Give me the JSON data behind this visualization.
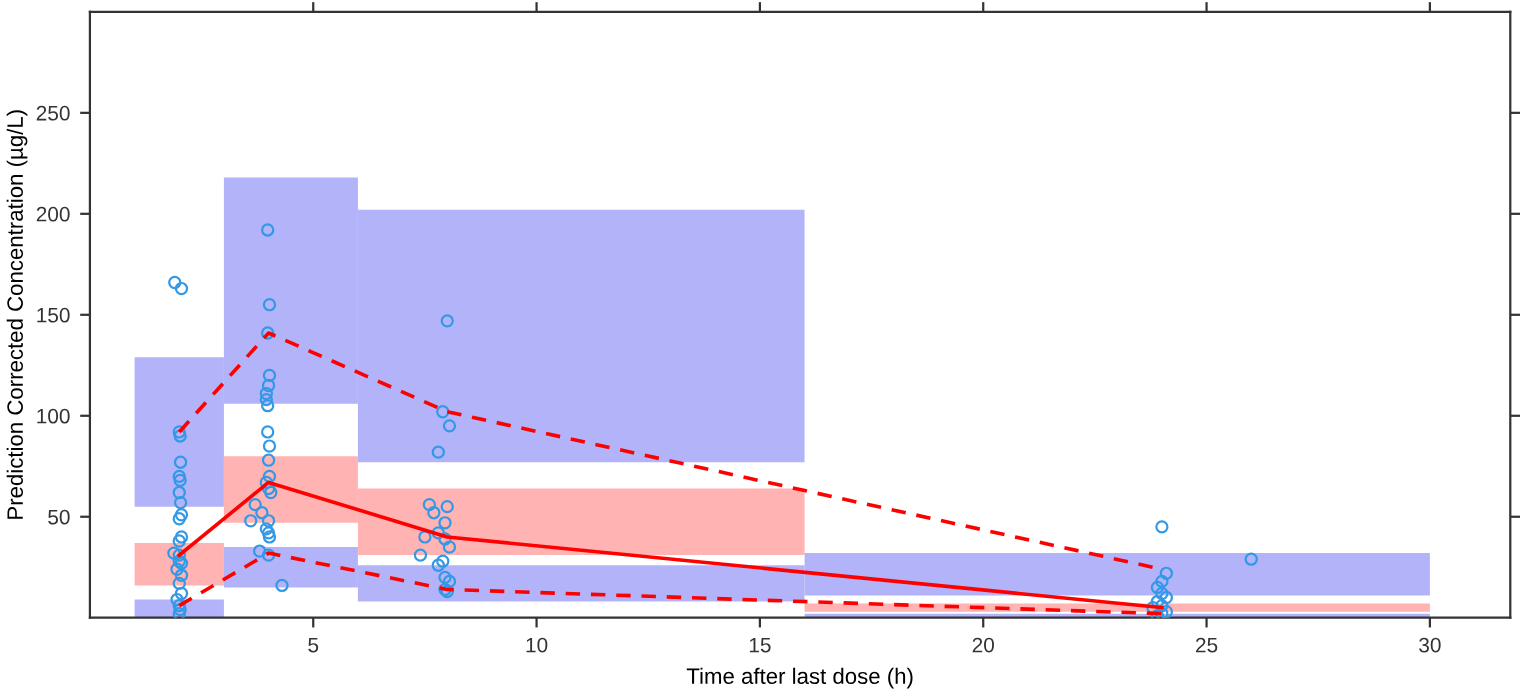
{
  "chart_data": {
    "type": "line",
    "xlabel": "Time after last dose (h)",
    "ylabel": "Prediction Corrected Concentration (µg/L)",
    "xlim": [
      0,
      31.8
    ],
    "ylim": [
      0,
      300
    ],
    "xticks": [
      5,
      10,
      15,
      20,
      25,
      30
    ],
    "yticks": [
      50,
      100,
      150,
      200,
      250
    ],
    "grid": false,
    "series": [
      {
        "type": "histogram",
        "color": "#b3b3fa",
        "bins": [
          1,
          3,
          6,
          16,
          30
        ],
        "base": [
          55,
          106,
          77,
          11
        ],
        "values": [
          74,
          112,
          125,
          21
        ]
      },
      {
        "type": "histogram",
        "color": "#ffb3b3",
        "bins": [
          1,
          3,
          6,
          16,
          30
        ],
        "base": [
          16,
          47,
          31,
          3
        ],
        "values": [
          21,
          33,
          33,
          4
        ]
      },
      {
        "type": "histogram",
        "color": "#b3b3fa",
        "bins": [
          1,
          3,
          6,
          16,
          30
        ],
        "base": [
          0,
          15,
          8,
          0
        ],
        "values": [
          9,
          20,
          18,
          2
        ]
      },
      {
        "type": "scatter",
        "color": "#3399e6",
        "marker": "circle",
        "x": [
          1.9,
          2.05,
          2.0,
          2.02,
          2.03,
          2.0,
          2.02,
          2.0,
          2.03,
          2.05,
          2.0,
          2.05,
          2.0,
          1.88,
          2.0,
          2.05,
          1.95,
          2.05,
          2.0,
          2.05,
          1.95,
          2.0,
          2.02,
          2.0,
          2.0,
          3.98,
          4.02,
          3.98,
          4.02,
          4.0,
          3.95,
          3.95,
          3.98,
          3.98,
          4.02,
          4.0,
          4.02,
          3.95,
          4.0,
          4.05,
          3.7,
          3.85,
          4.0,
          3.95,
          4.0,
          4.02,
          3.6,
          3.8,
          4.0,
          4.3,
          8.0,
          7.9,
          8.05,
          7.8,
          7.6,
          8.0,
          7.7,
          7.95,
          7.8,
          7.5,
          7.95,
          8.05,
          7.4,
          7.9,
          7.8,
          7.95,
          8.05,
          7.95,
          8.0,
          24.0,
          26.0,
          24.1,
          24.0,
          23.9,
          24.0,
          24.1,
          23.9,
          24.0,
          23.8,
          24.1,
          24.0,
          23.9
        ],
        "values": [
          166,
          163,
          92,
          90,
          77,
          70,
          68,
          62,
          57,
          51,
          49,
          40,
          38,
          32,
          31,
          27,
          24,
          21,
          17,
          12,
          9,
          6,
          4,
          2,
          28,
          192,
          155,
          141,
          120,
          115,
          111,
          108,
          105,
          92,
          85,
          78,
          70,
          67,
          64,
          62,
          56,
          52,
          48,
          44,
          42,
          40,
          48,
          33,
          31,
          16,
          147,
          102,
          95,
          82,
          56,
          55,
          52,
          47,
          42,
          40,
          39,
          35,
          31,
          28,
          26,
          20,
          18,
          14,
          13,
          45,
          29,
          22,
          18,
          15,
          12,
          10,
          8,
          6,
          5,
          3,
          2,
          1
        ]
      },
      {
        "color": "#ff0000",
        "line_style": "solid",
        "x": [
          2,
          4,
          8,
          24
        ],
        "values": [
          31,
          67,
          40,
          5
        ]
      },
      {
        "color": "#ff0000",
        "line_style": "dashed",
        "x": [
          2,
          4,
          8,
          24
        ],
        "values": [
          92,
          141,
          102,
          24
        ]
      },
      {
        "color": "#ff0000",
        "line_style": "dashed",
        "x": [
          2,
          4,
          8,
          24
        ],
        "values": [
          6,
          32,
          14,
          2
        ]
      }
    ]
  }
}
